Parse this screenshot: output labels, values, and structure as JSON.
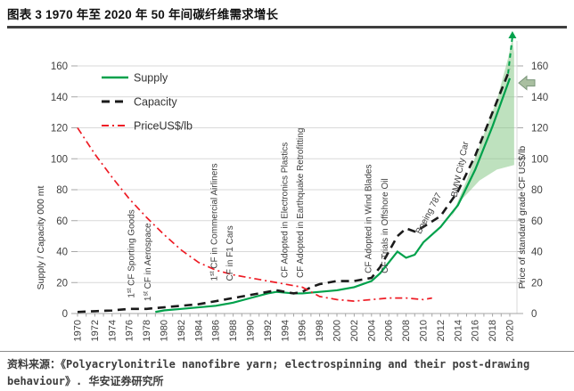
{
  "header": {
    "title": "图表 3 1970 年至 2020 年 50 年间碳纤维需求增长"
  },
  "chart_data": {
    "type": "line",
    "x_axis": {
      "ticks": [
        "1970",
        "1972",
        "1974",
        "1976",
        "1978",
        "1980",
        "1982",
        "1984",
        "1986",
        "1988",
        "1990",
        "1992",
        "1994",
        "1996",
        "1998",
        "2000",
        "2002",
        "2004",
        "2006",
        "2008",
        "2010",
        "2012",
        "2014",
        "2016",
        "2018",
        "2020"
      ],
      "range": [
        1970,
        2021
      ]
    },
    "y_left": {
      "label": "Supply / Capacity 000 mt",
      "ticks": [
        0,
        20,
        40,
        60,
        80,
        100,
        120,
        140,
        160
      ],
      "range": [
        0,
        160
      ]
    },
    "y_right": {
      "label": "Price of standard grade CF US$/lb",
      "ticks": [
        0,
        20,
        40,
        60,
        80,
        100,
        120,
        140,
        160
      ],
      "range": [
        0,
        160
      ]
    },
    "legend": [
      {
        "label": "Supply",
        "color": "#00A14B",
        "style": "solid"
      },
      {
        "label": "Capacity",
        "color": "#1A1A1A",
        "style": "dashed"
      },
      {
        "label": "PriceUS$/lb",
        "color": "#EE1C25",
        "style": "dashdot"
      }
    ],
    "series": [
      {
        "name": "Supply",
        "color": "#00A14B",
        "style": "solid",
        "width": 2.2,
        "points": [
          [
            1979,
            1
          ],
          [
            1980,
            2
          ],
          [
            1982,
            3
          ],
          [
            1984,
            4
          ],
          [
            1986,
            5
          ],
          [
            1988,
            7
          ],
          [
            1990,
            10
          ],
          [
            1992,
            13
          ],
          [
            1993,
            14
          ],
          [
            1995,
            13
          ],
          [
            1996,
            13
          ],
          [
            1998,
            14
          ],
          [
            2000,
            15
          ],
          [
            2002,
            17
          ],
          [
            2004,
            21
          ],
          [
            2005,
            26
          ],
          [
            2006,
            33
          ],
          [
            2007,
            40
          ],
          [
            2008,
            36
          ],
          [
            2009,
            38
          ],
          [
            2010,
            46
          ],
          [
            2012,
            56
          ],
          [
            2014,
            70
          ],
          [
            2016,
            93
          ],
          [
            2018,
            121
          ],
          [
            2020,
            152
          ]
        ]
      },
      {
        "name": "Capacity",
        "color": "#1A1A1A",
        "style": "dashed",
        "width": 2.6,
        "points": [
          [
            1970,
            1
          ],
          [
            1972,
            1.5
          ],
          [
            1974,
            2
          ],
          [
            1976,
            3
          ],
          [
            1978,
            3
          ],
          [
            1980,
            4
          ],
          [
            1982,
            5
          ],
          [
            1984,
            6
          ],
          [
            1986,
            8
          ],
          [
            1988,
            10
          ],
          [
            1990,
            12
          ],
          [
            1992,
            14
          ],
          [
            1993,
            15
          ],
          [
            1995,
            13
          ],
          [
            1996,
            14
          ],
          [
            1997,
            17
          ],
          [
            1998,
            19
          ],
          [
            2000,
            21
          ],
          [
            2002,
            21
          ],
          [
            2004,
            23
          ],
          [
            2005,
            30
          ],
          [
            2006,
            40
          ],
          [
            2007,
            50
          ],
          [
            2008,
            55
          ],
          [
            2009,
            53
          ],
          [
            2010,
            56
          ],
          [
            2012,
            63
          ],
          [
            2014,
            79
          ],
          [
            2016,
            102
          ],
          [
            2018,
            130
          ],
          [
            2020,
            158
          ]
        ]
      },
      {
        "name": "PriceUS$/lb",
        "color": "#EE1C25",
        "style": "dashdot",
        "width": 1.7,
        "points": [
          [
            1970,
            120
          ],
          [
            1972,
            103
          ],
          [
            1974,
            88
          ],
          [
            1976,
            74
          ],
          [
            1978,
            62
          ],
          [
            1980,
            51
          ],
          [
            1982,
            41
          ],
          [
            1984,
            33
          ],
          [
            1986,
            28
          ],
          [
            1988,
            25
          ],
          [
            1990,
            23
          ],
          [
            1992,
            21
          ],
          [
            1994,
            19
          ],
          [
            1996,
            17
          ],
          [
            1997,
            14
          ],
          [
            1998,
            11
          ],
          [
            2000,
            9
          ],
          [
            2002,
            8
          ],
          [
            2004,
            9
          ],
          [
            2006,
            10
          ],
          [
            2008,
            10
          ],
          [
            2010,
            9
          ],
          [
            2011,
            10
          ]
        ]
      }
    ],
    "forecast_band": {
      "color": "#7DC47D",
      "opacity": 0.5,
      "points": [
        [
          2013.2,
          62
        ],
        [
          2015,
          86
        ],
        [
          2017,
          116
        ],
        [
          2018.5,
          138
        ],
        [
          2019.8,
          165
        ],
        [
          2020.3,
          178
        ],
        [
          2020.5,
          168
        ],
        [
          2020.5,
          96
        ],
        [
          2018.5,
          93
        ],
        [
          2016.5,
          86
        ],
        [
          2014.5,
          74
        ]
      ]
    },
    "supply_projection_arrow": {
      "color": "#00A14B",
      "from": [
        2019.8,
        155
      ],
      "to": [
        2020.3,
        179
      ]
    },
    "price_pointer_arrow": {
      "value": 149,
      "fill": "#A9BFA0",
      "stroke": "#7A957A"
    },
    "annotations": [
      {
        "text": "1st CF Sporting Goods",
        "x": 1976.2,
        "y": 10,
        "angle": -90
      },
      {
        "text": "1st CF in Aerospace",
        "x": 1978.1,
        "y": 8,
        "angle": -90
      },
      {
        "text": "1st CF in Commercial Airliners",
        "x": 1985.8,
        "y": 21,
        "angle": -90
      },
      {
        "text": "CF in F1 Cars",
        "x": 1987.6,
        "y": 21,
        "angle": -90
      },
      {
        "text": "CF Adopted in Electronics Plastics",
        "x": 1993.9,
        "y": 23,
        "angle": -90
      },
      {
        "text": "CF Adopted in Earthquake Retrofitting",
        "x": 1995.7,
        "y": 23,
        "angle": -90
      },
      {
        "text": "CF Adopted in Wind Blades",
        "x": 2003.6,
        "y": 26,
        "angle": -90
      },
      {
        "text": "CF Trials in Offshore Oil",
        "x": 2005.5,
        "y": 26,
        "angle": -90
      },
      {
        "text": "Boeing 787",
        "x": 2009.3,
        "y": 51,
        "angle": -62
      },
      {
        "text": "BMW City Car",
        "x": 2013.5,
        "y": 75,
        "angle": -78
      }
    ]
  },
  "footer": {
    "source_line1": "资料来源：《Polyacrylonitrile nanofibre yarn; electrospinning and their post-drawing",
    "source_line2": "behaviour》. 华安证券研究所"
  }
}
